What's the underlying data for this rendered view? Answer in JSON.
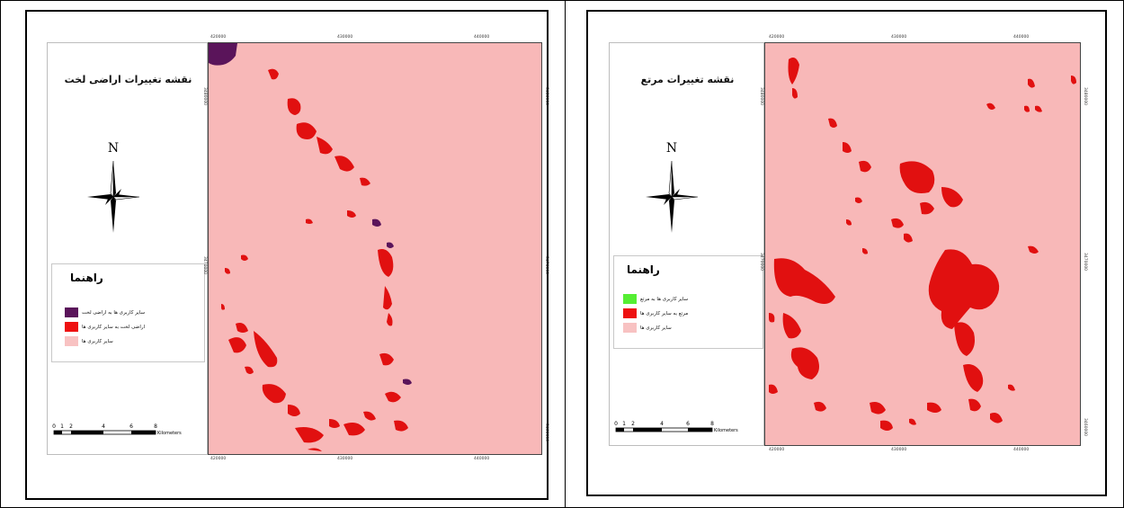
{
  "maps": [
    {
      "title": "نقشه تغییرات اراضی لخت",
      "north_label": "N",
      "legend": {
        "heading": "راهنما",
        "items": [
          {
            "label": "سایر کاربری ها به اراضی لخت",
            "color": "#5a145a"
          },
          {
            "label": "اراضی لخت به سایر کاربری ها",
            "color": "#ee1111"
          },
          {
            "label": "سایر کاربری ها",
            "color": "#f8c2c2"
          }
        ]
      },
      "scale": {
        "ticks": [
          "0",
          "1",
          "2",
          "4",
          "6",
          "8"
        ],
        "unit": "Kilometers"
      },
      "x_ticks": [
        "420000",
        "430000",
        "440000"
      ],
      "y_ticks": [
        "3480000",
        "3470000",
        "3460000"
      ],
      "map_color": "#f8b8b8"
    },
    {
      "title": "نقشه تغییرات مرتع",
      "north_label": "N",
      "legend": {
        "heading": "راهنما",
        "items": [
          {
            "label": "سایر کاربری ها به مرتع",
            "color": "#55ee33"
          },
          {
            "label": "مرتع به سایر کاربری ها",
            "color": "#ee1111"
          },
          {
            "label": "سایر کاربری ها",
            "color": "#f8c2c2"
          }
        ]
      },
      "scale": {
        "ticks": [
          "0",
          "1",
          "2",
          "4",
          "6",
          "8"
        ],
        "unit": "Kilometers"
      },
      "x_ticks": [
        "420000",
        "430000",
        "440000"
      ],
      "y_ticks": [
        "3480000",
        "3470000",
        "3460000"
      ],
      "map_color": "#f8b8b8"
    }
  ]
}
